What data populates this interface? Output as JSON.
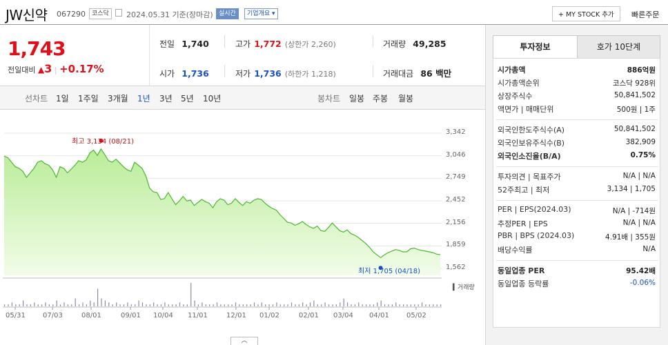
{
  "header": {
    "stock_name": "JW신약",
    "code": "067290",
    "market_badge": "코스닥",
    "date_label": "2024.05.31  기준(장마감)",
    "realtime_badge": "실시간",
    "overview_label": "기업개요 ▾",
    "mystock_button": "+ MY STOCK 추가",
    "quick_order": "빠른주문"
  },
  "quote": {
    "price": "1,743",
    "change_label": "전일대비",
    "change_arrow": "▲",
    "change_value": "3",
    "change_pct": "+0.17%"
  },
  "summary": {
    "prev_label": "전일",
    "prev_value": "1,740",
    "high_label": "고가",
    "high_value": "1,772",
    "upper_limit": "(상한가 2,260)",
    "volume_label": "거래량",
    "volume_value": "49,285",
    "open_label": "시가",
    "open_value": "1,736",
    "low_label": "저가",
    "low_value": "1,736",
    "lower_limit": "(하한가 1,218)",
    "amount_label": "거래대금",
    "amount_value": "86 백만"
  },
  "line_tabs": {
    "label": "선차트",
    "items": [
      "1일",
      "1주일",
      "3개월",
      "1년",
      "3년",
      "5년",
      "10년"
    ],
    "selected": "1년"
  },
  "candle_tabs": {
    "label": "봉차트",
    "items": [
      "일봉",
      "주봉",
      "월봉"
    ]
  },
  "chart": {
    "max_note": "최고 3,134 (08/21)",
    "min_note": "최저 1,705 (04/18)",
    "volume_label": "▍거래량",
    "colors": {
      "line": "#49b82e",
      "fill_top": "#b9ec98",
      "fill_bottom": "#f2fce9",
      "marker_high": "#e0101a",
      "marker_low": "#1650c8"
    }
  },
  "chart_data": {
    "type": "area",
    "title": "",
    "y_ticks": [
      "3,342",
      "3,046",
      "2,749",
      "2,452",
      "2,156",
      "1,859",
      "1,562"
    ],
    "ylim": [
      1562,
      3342
    ],
    "x_ticks": [
      "05/31",
      "07/03",
      "08/01",
      "09/01",
      "10/04",
      "11/01",
      "12/01",
      "01/02",
      "02/01",
      "03/04",
      "04/01",
      "05/02"
    ],
    "series": [
      {
        "values": [
          3040,
          3020,
          2960,
          2900,
          2880,
          2840,
          2760,
          2820,
          2880,
          2960,
          2980,
          2940,
          2920,
          2860,
          2760,
          2900,
          2880,
          2820,
          2870,
          2920,
          2980,
          2960,
          2990,
          3080,
          3120,
          3050,
          3134,
          3060,
          2980,
          2960,
          3000,
          2950,
          2900,
          2860,
          2840,
          2960,
          2920,
          2880,
          2780,
          2620,
          2570,
          2560,
          2470,
          2480,
          2560,
          2480,
          2400,
          2450,
          2510,
          2450,
          2460,
          2390,
          2430,
          2470,
          2440,
          2420,
          2360,
          2440,
          2480,
          2460,
          2400,
          2420,
          2480,
          2430,
          2390,
          2440,
          2420,
          2460,
          2480,
          2470,
          2420,
          2380,
          2350,
          2330,
          2270,
          2220,
          2170,
          2160,
          2130,
          2150,
          2180,
          2140,
          2110,
          2090,
          2120,
          2060,
          2050,
          2100,
          2160,
          2110,
          2060,
          2040,
          2070,
          2020,
          2000,
          1970,
          1930,
          1890,
          1840,
          1780,
          1740,
          1705,
          1740,
          1770,
          1790,
          1810,
          1800,
          1780,
          1780,
          1820,
          1830,
          1810,
          1800,
          1790,
          1780,
          1770,
          1750,
          1743
        ]
      }
    ],
    "annotations": [
      "최고 3,134 (08/21)",
      "최저 1,705 (04/18)"
    ],
    "volume_bars": [
      1,
      1,
      2,
      1,
      1,
      3,
      1,
      1,
      2,
      1,
      1,
      2,
      1,
      1,
      3,
      1,
      2,
      1,
      1,
      4,
      1,
      2,
      1,
      3,
      2,
      9,
      4,
      3,
      2,
      1,
      2,
      1,
      1,
      2,
      1,
      1,
      3,
      2,
      1,
      1,
      2,
      1,
      1,
      2,
      1,
      1,
      1,
      2,
      1,
      1,
      12,
      3,
      1,
      2,
      1,
      1,
      1,
      2,
      1,
      1,
      1,
      1,
      2,
      1,
      1,
      1,
      1,
      2,
      1,
      2,
      1,
      1,
      1,
      2,
      1,
      1,
      1,
      2,
      1,
      1,
      2,
      1,
      2,
      3,
      1,
      1,
      2,
      1,
      1,
      1,
      2,
      4,
      2,
      1,
      1,
      2,
      1,
      1,
      1,
      1,
      2,
      3,
      1,
      1,
      1,
      2,
      1,
      1,
      1,
      1,
      1,
      1,
      2,
      1,
      1,
      1,
      1,
      1
    ]
  },
  "right_panel": {
    "tab_info": "투자정보",
    "tab_order": "호가 10단계",
    "rows1": [
      {
        "label": "시가총액",
        "value": "886억원",
        "bold": true
      },
      {
        "label": "시가총액순위",
        "value": "코스닥 928위"
      },
      {
        "label": "상장주식수",
        "value": "50,841,502"
      },
      {
        "label": "액면가 | 매매단위",
        "value": "500원 | 1주"
      }
    ],
    "rows2": [
      {
        "label": "외국인한도주식수(A)",
        "value": "50,841,502"
      },
      {
        "label": "외국인보유주식수(B)",
        "value": "382,909"
      },
      {
        "label": "외국인소진율(B/A)",
        "value": "0.75%",
        "bold": true
      }
    ],
    "rows3": [
      {
        "label": "투자의견 | 목표주가",
        "value": "N/A | N/A"
      },
      {
        "label": "52주최고 | 최저",
        "value": "3,134 | 1,705"
      }
    ],
    "rows4": [
      {
        "label": "PER | EPS(2024.03)",
        "value": "N/A | -714원"
      },
      {
        "label": "추정PER | EPS",
        "value": "N/A | N/A"
      },
      {
        "label": "PBR | BPS (2024.03)",
        "value": "4.91배 | 355원"
      },
      {
        "label": "배당수익률",
        "value": "N/A"
      }
    ],
    "rows5": [
      {
        "label": "동일업종 PER",
        "value": "95.42배",
        "bold": true
      },
      {
        "label": "동일업종 등락률",
        "value": "-0.06%",
        "blue": true
      }
    ]
  }
}
